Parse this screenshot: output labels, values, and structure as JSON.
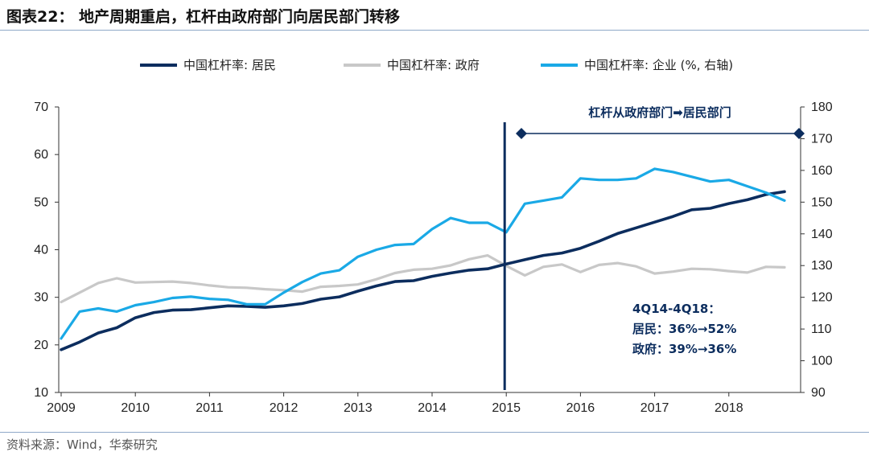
{
  "title": "图表22： 地产周期重启，杠杆由政府部门向居民部门转移",
  "source": "资料来源：Wind，华泰研究",
  "colors": {
    "household": "#0c2d5e",
    "government": "#c8c8c8",
    "corporate": "#1aa9e6",
    "axis": "#0c2d5e"
  },
  "chart_data": {
    "type": "line",
    "x_ticks": [
      "2009",
      "2010",
      "2011",
      "2012",
      "2013",
      "2014",
      "2015",
      "2016",
      "2017",
      "2018"
    ],
    "y_left": {
      "range": [
        10,
        70
      ],
      "ticks": [
        "10",
        "20",
        "30",
        "40",
        "50",
        "60",
        "70"
      ]
    },
    "y_right": {
      "range": [
        90,
        180
      ],
      "ticks": [
        "90",
        "100",
        "110",
        "120",
        "130",
        "140",
        "150",
        "160",
        "170",
        "180"
      ]
    },
    "x": [
      "2009Q1",
      "2009Q2",
      "2009Q3",
      "2009Q4",
      "2010Q1",
      "2010Q2",
      "2010Q3",
      "2010Q4",
      "2011Q1",
      "2011Q2",
      "2011Q3",
      "2011Q4",
      "2012Q1",
      "2012Q2",
      "2012Q3",
      "2012Q4",
      "2013Q1",
      "2013Q2",
      "2013Q3",
      "2013Q4",
      "2014Q1",
      "2014Q2",
      "2014Q3",
      "2014Q4",
      "2015Q1",
      "2015Q2",
      "2015Q3",
      "2015Q4",
      "2016Q1",
      "2016Q2",
      "2016Q3",
      "2016Q4",
      "2017Q1",
      "2017Q2",
      "2017Q3",
      "2017Q4",
      "2018Q1",
      "2018Q2",
      "2018Q3",
      "2018Q4"
    ],
    "series": [
      {
        "name": "中国杠杆率: 居民",
        "axis": "left",
        "values": [
          19.0,
          20.6,
          22.5,
          23.6,
          25.7,
          26.8,
          27.3,
          27.4,
          27.8,
          28.2,
          28.1,
          27.9,
          28.2,
          28.7,
          29.6,
          30.1,
          31.3,
          32.4,
          33.3,
          33.5,
          34.4,
          35.1,
          35.7,
          36.0,
          37.0,
          37.9,
          38.8,
          39.3,
          40.3,
          41.8,
          43.4,
          44.6,
          45.8,
          47.0,
          48.4,
          48.7,
          49.7,
          50.5,
          51.6,
          52.2
        ]
      },
      {
        "name": "中国杠杆率: 政府",
        "axis": "left",
        "values": [
          29.0,
          31.0,
          33.0,
          34.0,
          33.1,
          33.2,
          33.3,
          33.0,
          32.5,
          32.1,
          32.0,
          31.7,
          31.5,
          31.2,
          32.2,
          32.4,
          32.7,
          33.8,
          35.1,
          35.8,
          36.0,
          36.7,
          38.0,
          38.8,
          36.6,
          34.6,
          36.4,
          36.9,
          35.3,
          36.8,
          37.2,
          36.5,
          35.0,
          35.4,
          36.0,
          35.9,
          35.5,
          35.2,
          36.4,
          36.3
        ]
      },
      {
        "name": "中国杠杆率: 企业 (%, 右轴)",
        "axis": "right",
        "values": [
          107.0,
          115.5,
          116.5,
          115.5,
          117.5,
          118.5,
          119.8,
          120.2,
          119.5,
          119.2,
          117.8,
          117.8,
          121.5,
          124.8,
          127.5,
          128.5,
          132.8,
          135.0,
          136.5,
          136.8,
          141.5,
          145.0,
          143.5,
          143.5,
          140.5,
          149.5,
          150.5,
          151.5,
          157.5,
          157.0,
          157.0,
          157.5,
          160.5,
          159.5,
          158.0,
          156.5,
          157.0,
          155.0,
          153.0,
          150.5
        ]
      }
    ],
    "event_line_x": "2015",
    "annotation_top": "杠杆从政府部门➡居民部门",
    "annotation_box": [
      "4Q14-4Q18：",
      "居民：36%→52%",
      "政府：39%→36%"
    ]
  }
}
